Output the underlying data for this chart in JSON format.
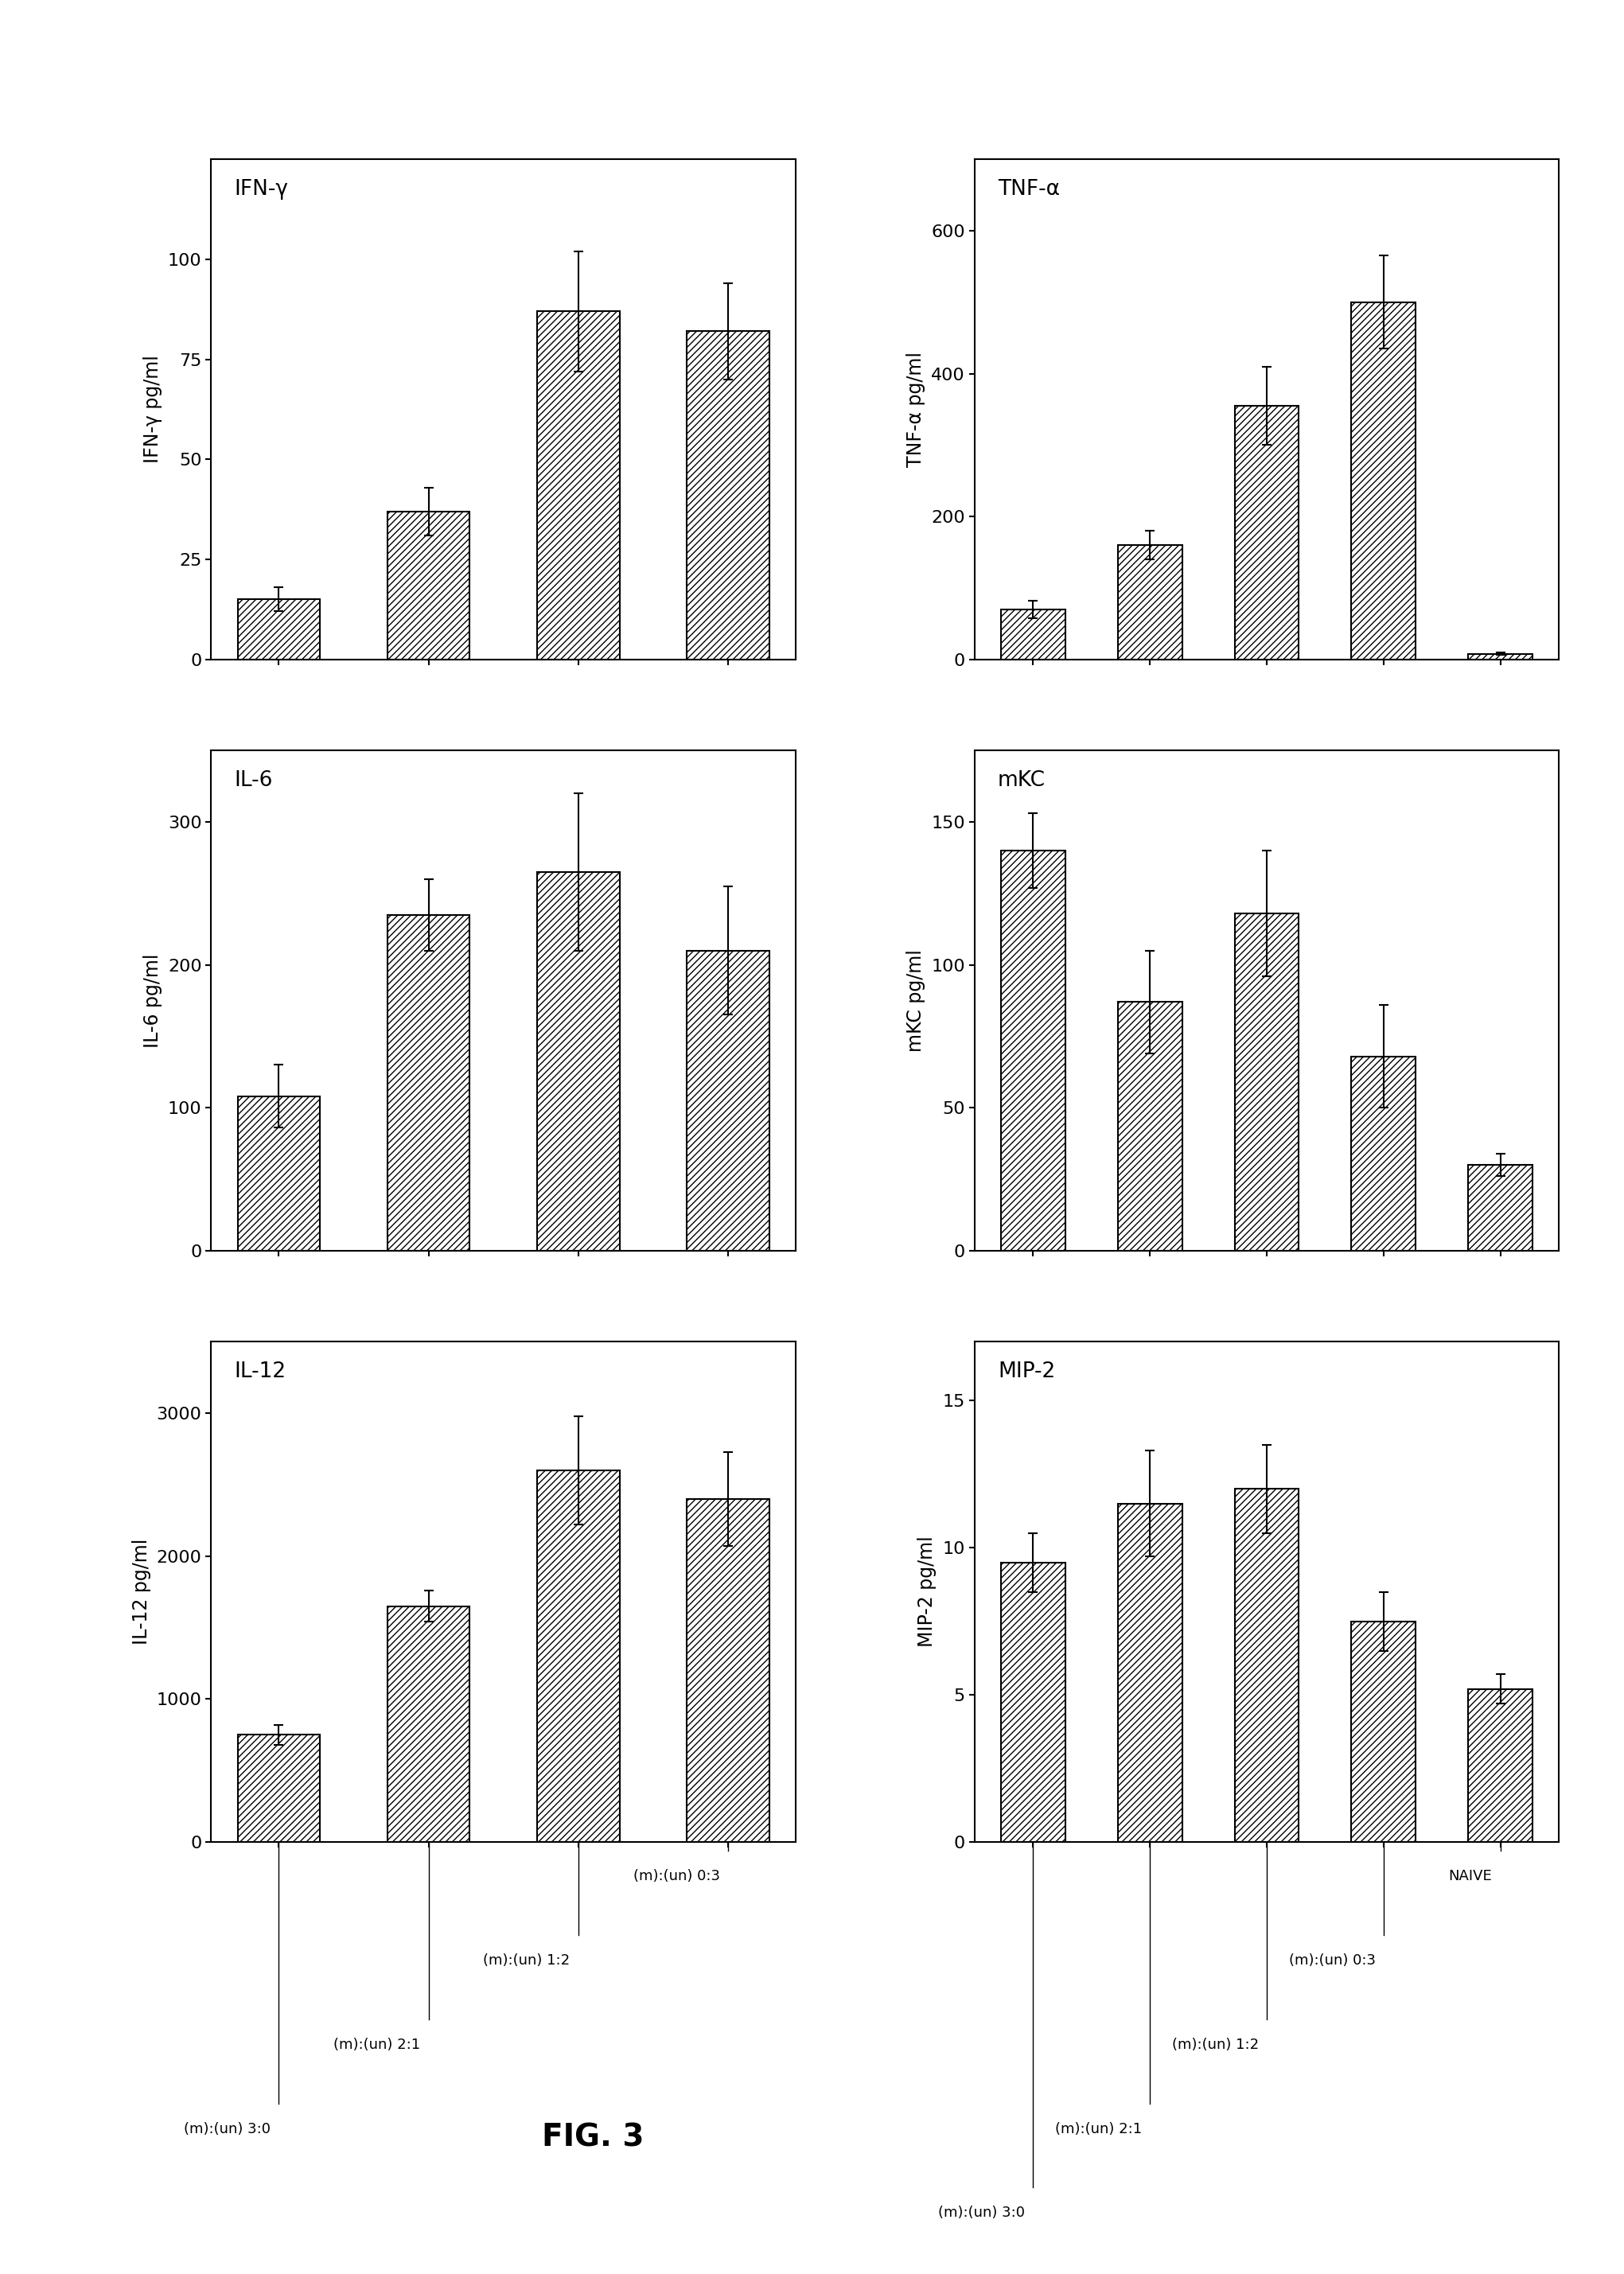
{
  "panels": [
    {
      "title": "IFN-γ",
      "ylabel": "IFN-γ pg/ml",
      "ylim": [
        0,
        125
      ],
      "yticks": [
        0,
        25,
        50,
        75,
        100
      ],
      "values": [
        15,
        37,
        87,
        82
      ],
      "errors": [
        3,
        6,
        15,
        12
      ],
      "n_bars": 4,
      "row": 0,
      "col": 0
    },
    {
      "title": "TNF-α",
      "ylabel": "TNF-α pg/ml",
      "ylim": [
        0,
        700
      ],
      "yticks": [
        0,
        200,
        400,
        600
      ],
      "values": [
        70,
        160,
        355,
        500,
        8
      ],
      "errors": [
        12,
        20,
        55,
        65,
        2
      ],
      "n_bars": 5,
      "row": 0,
      "col": 1
    },
    {
      "title": "IL-6",
      "ylabel": "IL-6 pg/ml",
      "ylim": [
        0,
        350
      ],
      "yticks": [
        0,
        100,
        200,
        300
      ],
      "values": [
        108,
        235,
        265,
        210
      ],
      "errors": [
        22,
        25,
        55,
        45
      ],
      "n_bars": 4,
      "row": 1,
      "col": 0
    },
    {
      "title": "mKC",
      "ylabel": "mKC pg/ml",
      "ylim": [
        0,
        175
      ],
      "yticks": [
        0,
        50,
        100,
        150
      ],
      "values": [
        140,
        87,
        118,
        68,
        30
      ],
      "errors": [
        13,
        18,
        22,
        18,
        4
      ],
      "n_bars": 5,
      "row": 1,
      "col": 1
    },
    {
      "title": "IL-12",
      "ylabel": "IL-12 pg/ml",
      "ylim": [
        0,
        3500
      ],
      "yticks": [
        0,
        1000,
        2000,
        3000
      ],
      "values": [
        750,
        1650,
        2600,
        2400
      ],
      "errors": [
        70,
        110,
        380,
        330
      ],
      "n_bars": 4,
      "row": 2,
      "col": 0
    },
    {
      "title": "MIP-2",
      "ylabel": "MIP-2 pg/ml",
      "ylim": [
        0,
        17
      ],
      "yticks": [
        0,
        5,
        10,
        15
      ],
      "values": [
        9.5,
        11.5,
        12.0,
        7.5,
        5.2
      ],
      "errors": [
        1.0,
        1.8,
        1.5,
        1.0,
        0.5
      ],
      "n_bars": 5,
      "row": 2,
      "col": 1
    }
  ],
  "categories_4": [
    "(m):(un) 3:0",
    "(m):(un) 2:1",
    "(m):(un) 1:2",
    "(m):(un) 0:3"
  ],
  "categories_5": [
    "(m):(un) 3:0",
    "(m):(un) 2:1",
    "(m):(un) 1:2",
    "(m):(un) 0:3",
    "NAIVE"
  ],
  "hatch_pattern": "////",
  "bar_color": "white",
  "bar_edgecolor": "black",
  "fig_label": "FIG. 3",
  "background_color": "white"
}
